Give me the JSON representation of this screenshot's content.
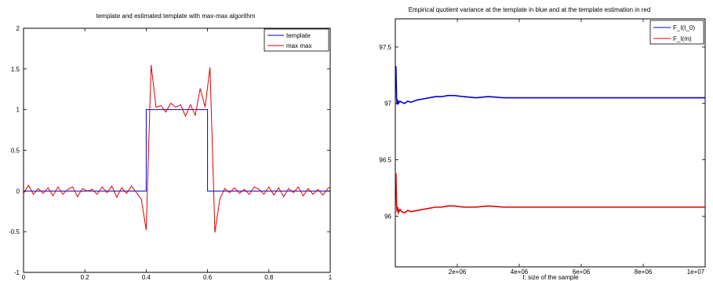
{
  "chart_data": [
    {
      "type": "line",
      "title": "template and estimated template with max-max algorithm",
      "xlim": [
        0,
        1
      ],
      "ylim": [
        -1,
        2
      ],
      "x_ticks": [
        "0",
        "0.2",
        "0.4",
        "0.6",
        "0.8",
        "1"
      ],
      "y_ticks": [
        "-1",
        "-0.5",
        "0",
        "0.5",
        "1",
        "1.5",
        "2"
      ],
      "legend_position": "top-right",
      "series": [
        {
          "name": "template",
          "color": "#0000cc",
          "x": [
            0,
            0.4,
            0.4,
            0.6,
            0.6,
            1
          ],
          "y": [
            0,
            0,
            1,
            1,
            0,
            0
          ]
        },
        {
          "name": "max max",
          "color": "#dd0000",
          "x": [
            0,
            0.016,
            0.032,
            0.048,
            0.064,
            0.08,
            0.096,
            0.112,
            0.128,
            0.144,
            0.16,
            0.176,
            0.192,
            0.208,
            0.224,
            0.24,
            0.256,
            0.272,
            0.288,
            0.304,
            0.32,
            0.336,
            0.352,
            0.368,
            0.384,
            0.4,
            0.416,
            0.432,
            0.448,
            0.464,
            0.48,
            0.496,
            0.512,
            0.528,
            0.544,
            0.56,
            0.576,
            0.592,
            0.608,
            0.624,
            0.64,
            0.656,
            0.672,
            0.688,
            0.704,
            0.72,
            0.736,
            0.752,
            0.768,
            0.784,
            0.8,
            0.816,
            0.832,
            0.848,
            0.864,
            0.88,
            0.896,
            0.912,
            0.928,
            0.944,
            0.96,
            0.976,
            0.992,
            1.0
          ],
          "y": [
            -0.03,
            0.07,
            -0.04,
            0.03,
            -0.03,
            0.04,
            -0.06,
            0.05,
            -0.04,
            0.02,
            0.05,
            -0.07,
            0.03,
            0.0,
            0.02,
            -0.04,
            0.05,
            -0.02,
            0.06,
            -0.08,
            0.04,
            -0.03,
            0.06,
            -0.02,
            -0.1,
            -0.48,
            1.55,
            1.03,
            1.05,
            0.97,
            1.08,
            1.03,
            1.06,
            0.92,
            1.06,
            0.93,
            1.26,
            1.03,
            1.52,
            -0.51,
            -0.1,
            0.03,
            -0.02,
            0.04,
            -0.03,
            0.02,
            -0.04,
            0.05,
            0.02,
            -0.04,
            0.05,
            -0.05,
            0.04,
            -0.07,
            0.03,
            -0.02,
            0.05,
            -0.06,
            0.03,
            -0.04,
            0.02,
            -0.05,
            0.03,
            0.05
          ]
        }
      ]
    },
    {
      "type": "line",
      "title": "Empirical quotient variance at the template in blue and at the template estimation in red",
      "xlabel": "I: size of the sample",
      "xlim": [
        0,
        10000000
      ],
      "ylim": [
        95.55,
        97.75
      ],
      "x_tick_values": [
        2000000,
        4000000,
        6000000,
        8000000,
        10000000
      ],
      "x_ticks": [
        "2e+06",
        "4e+06",
        "6e+06",
        "8e+06",
        "1e+07"
      ],
      "y_tick_values": [
        96,
        96.5,
        97,
        97.5
      ],
      "y_ticks": [
        "96",
        "96.5",
        "97",
        "97.5"
      ],
      "legend_position": "top-right",
      "series": [
        {
          "name": "F_I(t_0)",
          "color": "#0000cc",
          "x": [
            20000,
            40000,
            60000,
            80000,
            100000,
            150000,
            200000,
            300000,
            400000,
            500000,
            700000,
            900000,
            1100000,
            1300000,
            1500000,
            1700000,
            1900000,
            2200000,
            2600000,
            3000000,
            3500000,
            4000000,
            5000000,
            6000000,
            7000000,
            8000000,
            9000000,
            10000000
          ],
          "y": [
            97.33,
            97.05,
            96.99,
            97.03,
            97.0,
            97.02,
            97.01,
            97.0,
            97.02,
            97.01,
            97.03,
            97.04,
            97.05,
            97.06,
            97.06,
            97.07,
            97.07,
            97.06,
            97.05,
            97.06,
            97.05,
            97.05,
            97.05,
            97.05,
            97.05,
            97.05,
            97.05,
            97.05
          ]
        },
        {
          "name": "F_I(m)",
          "color": "#dd0000",
          "x": [
            20000,
            40000,
            60000,
            80000,
            100000,
            150000,
            200000,
            300000,
            400000,
            500000,
            700000,
            900000,
            1100000,
            1300000,
            1500000,
            1700000,
            1900000,
            2200000,
            2600000,
            3000000,
            3500000,
            4000000,
            5000000,
            6000000,
            7000000,
            8000000,
            9000000,
            10000000
          ],
          "y": [
            96.38,
            96.1,
            96.04,
            96.08,
            96.03,
            96.06,
            96.04,
            96.03,
            96.05,
            96.04,
            96.05,
            96.06,
            96.07,
            96.08,
            96.08,
            96.09,
            96.09,
            96.08,
            96.08,
            96.09,
            96.08,
            96.08,
            96.08,
            96.08,
            96.08,
            96.08,
            96.08,
            96.08
          ]
        }
      ]
    }
  ]
}
